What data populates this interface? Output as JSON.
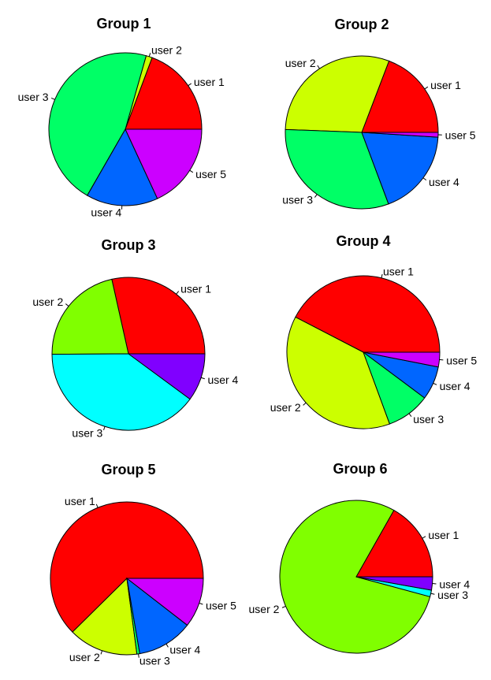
{
  "chart_data": [
    {
      "type": "pie",
      "title": "Group 1",
      "slices": [
        {
          "label": "user 1",
          "value": 0.193,
          "color": "#ff0000"
        },
        {
          "label": "user 2",
          "value": 0.013,
          "color": "#ccff00"
        },
        {
          "label": "user 3",
          "value": 0.461,
          "color": "#00ff66"
        },
        {
          "label": "user 4",
          "value": 0.152,
          "color": "#0066ff"
        },
        {
          "label": "user 5",
          "value": 0.181,
          "color": "#cc00ff"
        }
      ]
    },
    {
      "type": "pie",
      "title": "Group 2",
      "slices": [
        {
          "label": "user 1",
          "value": 0.192,
          "color": "#ff0000"
        },
        {
          "label": "user 2",
          "value": 0.302,
          "color": "#ccff00"
        },
        {
          "label": "user 3",
          "value": 0.313,
          "color": "#00ff66"
        },
        {
          "label": "user 4",
          "value": 0.183,
          "color": "#0066ff"
        },
        {
          "label": "user 5",
          "value": 0.01,
          "color": "#cc00ff"
        }
      ]
    },
    {
      "type": "pie",
      "title": "Group 3",
      "slices": [
        {
          "label": "user 1",
          "value": 0.285,
          "color": "#ff0000"
        },
        {
          "label": "user 2",
          "value": 0.216,
          "color": "#80ff00"
        },
        {
          "label": "user 3",
          "value": 0.398,
          "color": "#00ffff"
        },
        {
          "label": "user 4",
          "value": 0.101,
          "color": "#8000ff"
        }
      ]
    },
    {
      "type": "pie",
      "title": "Group 4",
      "slices": [
        {
          "label": "user 1",
          "value": 0.424,
          "color": "#ff0000"
        },
        {
          "label": "user 2",
          "value": 0.382,
          "color": "#ccff00"
        },
        {
          "label": "user 3",
          "value": 0.092,
          "color": "#00ff66"
        },
        {
          "label": "user 4",
          "value": 0.071,
          "color": "#0066ff"
        },
        {
          "label": "user 5",
          "value": 0.031,
          "color": "#cc00ff"
        }
      ]
    },
    {
      "type": "pie",
      "title": "Group 5",
      "slices": [
        {
          "label": "user 1",
          "value": 0.624,
          "color": "#ff0000"
        },
        {
          "label": "user 2",
          "value": 0.147,
          "color": "#ccff00"
        },
        {
          "label": "user 3",
          "value": 0.006,
          "color": "#00ff66"
        },
        {
          "label": "user 4",
          "value": 0.118,
          "color": "#0066ff"
        },
        {
          "label": "user 5",
          "value": 0.105,
          "color": "#cc00ff"
        }
      ]
    },
    {
      "type": "pie",
      "title": "Group 6",
      "slices": [
        {
          "label": "user 1",
          "value": 0.168,
          "color": "#ff0000"
        },
        {
          "label": "user 2",
          "value": 0.79,
          "color": "#80ff00"
        },
        {
          "label": "user 3",
          "value": 0.014,
          "color": "#00ffff"
        },
        {
          "label": "user 4",
          "value": 0.028,
          "color": "#8000ff"
        }
      ]
    }
  ]
}
